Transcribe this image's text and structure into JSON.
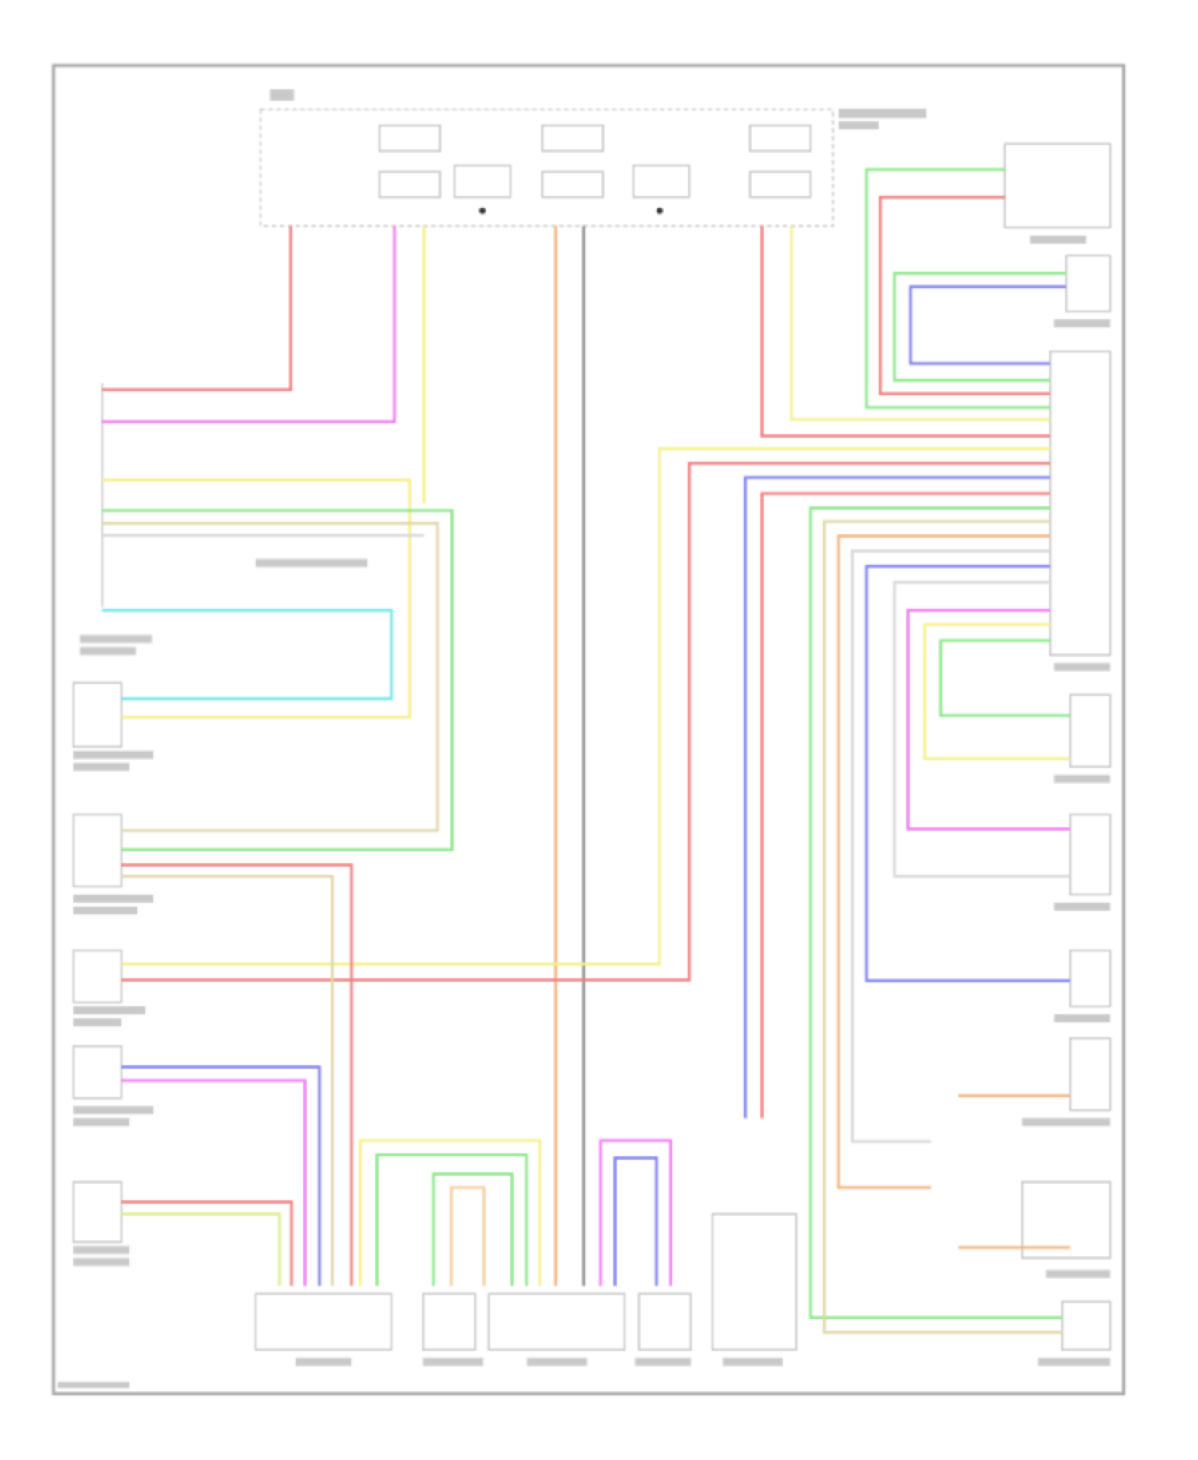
{
  "diagram": {
    "type": "wiring-schematic",
    "text_legible": false,
    "wire_colors": {
      "red": "#f08080",
      "magenta": "#f07cf0",
      "yellow": "#f5f08a",
      "orange": "#f5b27a",
      "gray": "#8c8c8c",
      "green": "#8ae68a",
      "blue": "#8080f0",
      "cyan": "#70e8e8",
      "beige": "#e0d8a8",
      "lightgray": "#d8d8d8",
      "yellowgreen": "#d8f08a"
    },
    "frame_color": "#a8a8a8"
  }
}
